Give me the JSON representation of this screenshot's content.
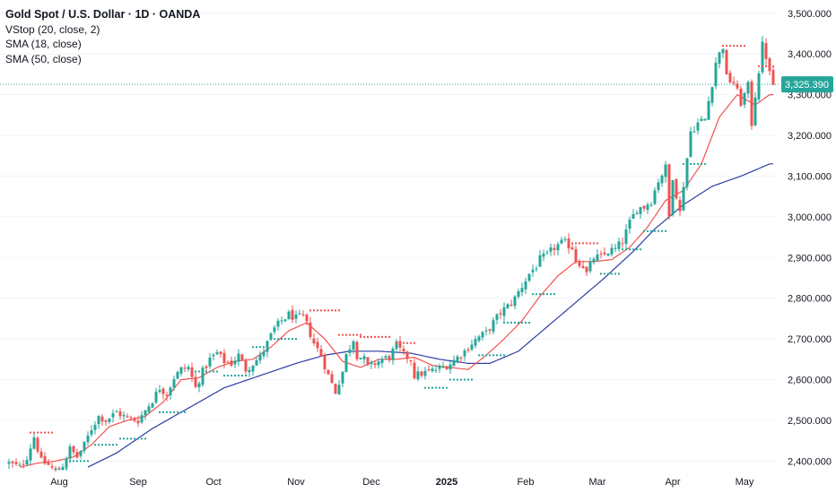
{
  "legend": {
    "title": "Gold Spot / U.S. Dollar · 1D · OANDA",
    "indicators": [
      "VStop (20, close, 2)",
      "SMA (18, close)",
      "SMA (50, close)"
    ]
  },
  "colors": {
    "up": "#26a69a",
    "down": "#ef5350",
    "vstop_up": "#26a69a",
    "vstop_down": "#ef5350",
    "sma18": "#ef5350",
    "sma50": "#2d3ea3",
    "last_price_bg": "#26a69a",
    "last_price_line": "#26a69a"
  },
  "chart_data": {
    "type": "candlestick",
    "instrument": "Gold Spot / U.S. Dollar",
    "timeframe": "1D",
    "source": "OANDA",
    "last_price": 3325.39,
    "last_price_label": "3,325.390",
    "y_ticks": [
      "2,400.000",
      "2,500.000",
      "2,600.000",
      "2,700.000",
      "2,800.000",
      "2,900.000",
      "3,000.000",
      "3,100.000",
      "3,200.000",
      "3,300.000",
      "3,400.000",
      "3,500.000"
    ],
    "ylim": [
      2370,
      3515
    ],
    "x_ticks": [
      {
        "label": "Aug",
        "bar": 14,
        "bold": false
      },
      {
        "label": "Sep",
        "bar": 36,
        "bold": false
      },
      {
        "label": "Oct",
        "bar": 57,
        "bold": false
      },
      {
        "label": "Nov",
        "bar": 80,
        "bold": false
      },
      {
        "label": "Dec",
        "bar": 101,
        "bold": false
      },
      {
        "label": "2025",
        "bar": 122,
        "bold": true
      },
      {
        "label": "Feb",
        "bar": 144,
        "bold": false
      },
      {
        "label": "Mar",
        "bar": 164,
        "bold": false
      },
      {
        "label": "Apr",
        "bar": 185,
        "bold": false
      },
      {
        "label": "May",
        "bar": 205,
        "bold": false
      }
    ],
    "close_anchors": [
      [
        0,
        2395
      ],
      [
        3,
        2385
      ],
      [
        5,
        2410
      ],
      [
        7,
        2460
      ],
      [
        9,
        2400
      ],
      [
        11,
        2390
      ],
      [
        13,
        2375
      ],
      [
        15,
        2390
      ],
      [
        17,
        2430
      ],
      [
        19,
        2410
      ],
      [
        21,
        2440
      ],
      [
        23,
        2480
      ],
      [
        25,
        2510
      ],
      [
        27,
        2500
      ],
      [
        30,
        2520
      ],
      [
        33,
        2505
      ],
      [
        36,
        2500
      ],
      [
        38,
        2525
      ],
      [
        40,
        2550
      ],
      [
        42,
        2580
      ],
      [
        44,
        2565
      ],
      [
        46,
        2605
      ],
      [
        48,
        2625
      ],
      [
        50,
        2630
      ],
      [
        52,
        2580
      ],
      [
        54,
        2620
      ],
      [
        56,
        2650
      ],
      [
        58,
        2665
      ],
      [
        60,
        2645
      ],
      [
        62,
        2640
      ],
      [
        64,
        2660
      ],
      [
        66,
        2625
      ],
      [
        68,
        2640
      ],
      [
        70,
        2655
      ],
      [
        72,
        2690
      ],
      [
        74,
        2725
      ],
      [
        76,
        2745
      ],
      [
        78,
        2760
      ],
      [
        80,
        2750
      ],
      [
        82,
        2755
      ],
      [
        83,
        2735
      ],
      [
        85,
        2690
      ],
      [
        87,
        2660
      ],
      [
        89,
        2610
      ],
      [
        91,
        2570
      ],
      [
        93,
        2620
      ],
      [
        94,
        2660
      ],
      [
        96,
        2700
      ],
      [
        97,
        2660
      ],
      [
        99,
        2650
      ],
      [
        100,
        2630
      ],
      [
        102,
        2640
      ],
      [
        104,
        2650
      ],
      [
        106,
        2655
      ],
      [
        108,
        2685
      ],
      [
        110,
        2660
      ],
      [
        112,
        2650
      ],
      [
        113,
        2610
      ],
      [
        115,
        2615
      ],
      [
        117,
        2620
      ],
      [
        119,
        2625
      ],
      [
        121,
        2630
      ],
      [
        123,
        2640
      ],
      [
        125,
        2655
      ],
      [
        127,
        2670
      ],
      [
        129,
        2690
      ],
      [
        131,
        2705
      ],
      [
        133,
        2715
      ],
      [
        135,
        2740
      ],
      [
        137,
        2765
      ],
      [
        139,
        2780
      ],
      [
        141,
        2800
      ],
      [
        143,
        2830
      ],
      [
        145,
        2860
      ],
      [
        147,
        2880
      ],
      [
        148,
        2895
      ],
      [
        150,
        2905
      ],
      [
        152,
        2925
      ],
      [
        154,
        2935
      ],
      [
        155,
        2935
      ],
      [
        157,
        2925
      ],
      [
        158,
        2895
      ],
      [
        160,
        2880
      ],
      [
        161,
        2860
      ],
      [
        163,
        2900
      ],
      [
        165,
        2900
      ],
      [
        167,
        2915
      ],
      [
        169,
        2920
      ],
      [
        171,
        2940
      ],
      [
        173,
        2985
      ],
      [
        175,
        3020
      ],
      [
        177,
        3025
      ],
      [
        179,
        3040
      ],
      [
        181,
        3090
      ],
      [
        183,
        3120
      ],
      [
        184,
        3000
      ],
      [
        185,
        3100
      ],
      [
        187,
        3010
      ],
      [
        188,
        3080
      ],
      [
        190,
        3210
      ],
      [
        192,
        3230
      ],
      [
        194,
        3240
      ],
      [
        196,
        3330
      ],
      [
        197,
        3380
      ],
      [
        199,
        3420
      ],
      [
        200,
        3340
      ],
      [
        202,
        3330
      ],
      [
        204,
        3280
      ],
      [
        206,
        3320
      ],
      [
        207,
        3230
      ],
      [
        208,
        3300
      ],
      [
        210,
        3420
      ],
      [
        211,
        3395
      ],
      [
        212,
        3350
      ],
      [
        213,
        3325
      ]
    ],
    "sma18_anchors": [
      [
        3,
        2385
      ],
      [
        8,
        2395
      ],
      [
        13,
        2400
      ],
      [
        18,
        2410
      ],
      [
        23,
        2440
      ],
      [
        28,
        2485
      ],
      [
        33,
        2500
      ],
      [
        38,
        2510
      ],
      [
        43,
        2545
      ],
      [
        48,
        2600
      ],
      [
        53,
        2605
      ],
      [
        58,
        2630
      ],
      [
        63,
        2645
      ],
      [
        68,
        2650
      ],
      [
        73,
        2680
      ],
      [
        78,
        2720
      ],
      [
        83,
        2740
      ],
      [
        88,
        2700
      ],
      [
        93,
        2645
      ],
      [
        98,
        2630
      ],
      [
        103,
        2650
      ],
      [
        108,
        2650
      ],
      [
        113,
        2655
      ],
      [
        118,
        2635
      ],
      [
        123,
        2630
      ],
      [
        128,
        2625
      ],
      [
        133,
        2660
      ],
      [
        138,
        2700
      ],
      [
        143,
        2745
      ],
      [
        148,
        2805
      ],
      [
        153,
        2855
      ],
      [
        158,
        2890
      ],
      [
        163,
        2890
      ],
      [
        168,
        2895
      ],
      [
        173,
        2925
      ],
      [
        178,
        2975
      ],
      [
        183,
        3040
      ],
      [
        188,
        3065
      ],
      [
        193,
        3130
      ],
      [
        198,
        3245
      ],
      [
        203,
        3300
      ],
      [
        208,
        3275
      ],
      [
        212,
        3300
      ]
    ],
    "sma50_anchors": [
      [
        22,
        2385
      ],
      [
        30,
        2420
      ],
      [
        40,
        2480
      ],
      [
        50,
        2530
      ],
      [
        60,
        2580
      ],
      [
        70,
        2610
      ],
      [
        80,
        2640
      ],
      [
        88,
        2660
      ],
      [
        95,
        2670
      ],
      [
        103,
        2670
      ],
      [
        112,
        2665
      ],
      [
        120,
        2650
      ],
      [
        128,
        2640
      ],
      [
        134,
        2640
      ],
      [
        142,
        2670
      ],
      [
        150,
        2730
      ],
      [
        158,
        2790
      ],
      [
        166,
        2850
      ],
      [
        174,
        2915
      ],
      [
        180,
        2970
      ],
      [
        188,
        3030
      ],
      [
        196,
        3075
      ],
      [
        204,
        3100
      ],
      [
        212,
        3130
      ]
    ],
    "vstop_points": [
      {
        "from": 6,
        "to": 12,
        "value": 2470,
        "dir": "down"
      },
      {
        "from": 13,
        "to": 16,
        "value": 2380,
        "dir": "up"
      },
      {
        "from": 16,
        "to": 22,
        "value": 2400,
        "dir": "up"
      },
      {
        "from": 24,
        "to": 30,
        "value": 2440,
        "dir": "up"
      },
      {
        "from": 31,
        "to": 38,
        "value": 2455,
        "dir": "up"
      },
      {
        "from": 42,
        "to": 49,
        "value": 2520,
        "dir": "up"
      },
      {
        "from": 52,
        "to": 58,
        "value": 2620,
        "dir": "up"
      },
      {
        "from": 60,
        "to": 66,
        "value": 2610,
        "dir": "up"
      },
      {
        "from": 68,
        "to": 72,
        "value": 2680,
        "dir": "up"
      },
      {
        "from": 73,
        "to": 80,
        "value": 2700,
        "dir": "up"
      },
      {
        "from": 84,
        "to": 92,
        "value": 2770,
        "dir": "down"
      },
      {
        "from": 92,
        "to": 98,
        "value": 2710,
        "dir": "down"
      },
      {
        "from": 98,
        "to": 106,
        "value": 2705,
        "dir": "down"
      },
      {
        "from": 108,
        "to": 113,
        "value": 2690,
        "dir": "down"
      },
      {
        "from": 116,
        "to": 122,
        "value": 2580,
        "dir": "up"
      },
      {
        "from": 123,
        "to": 129,
        "value": 2600,
        "dir": "up"
      },
      {
        "from": 131,
        "to": 138,
        "value": 2660,
        "dir": "up"
      },
      {
        "from": 138,
        "to": 145,
        "value": 2740,
        "dir": "up"
      },
      {
        "from": 146,
        "to": 152,
        "value": 2810,
        "dir": "up"
      },
      {
        "from": 156,
        "to": 164,
        "value": 2935,
        "dir": "down"
      },
      {
        "from": 165,
        "to": 170,
        "value": 2860,
        "dir": "up"
      },
      {
        "from": 171,
        "to": 176,
        "value": 2920,
        "dir": "up"
      },
      {
        "from": 177,
        "to": 183,
        "value": 2965,
        "dir": "up"
      },
      {
        "from": 188,
        "to": 194,
        "value": 3130,
        "dir": "up"
      },
      {
        "from": 199,
        "to": 205,
        "value": 3420,
        "dir": "down"
      },
      {
        "from": 209,
        "to": 213,
        "value": 3370,
        "dir": "down"
      }
    ]
  }
}
